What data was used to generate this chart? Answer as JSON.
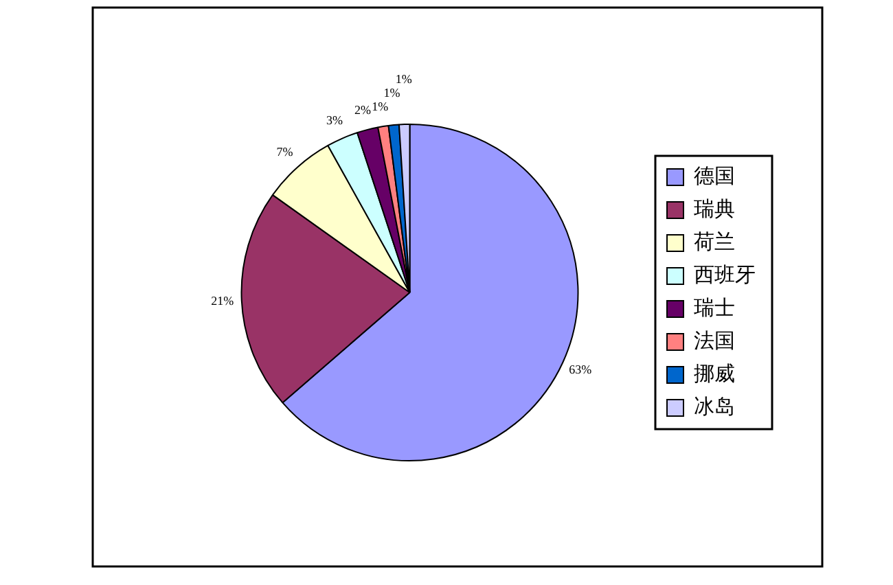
{
  "chart_data": {
    "type": "pie",
    "categories": [
      "德国",
      "瑞典",
      "荷兰",
      "西班牙",
      "瑞士",
      "法国",
      "挪威",
      "冰岛"
    ],
    "values": [
      63,
      21,
      7,
      3,
      2,
      1,
      1,
      1
    ],
    "colors": [
      "#9999ff",
      "#993366",
      "#ffffcc",
      "#ccffff",
      "#660066",
      "#ff8080",
      "#0066cc",
      "#ccccff"
    ],
    "value_labels": [
      "63%",
      "21%",
      "7%",
      "3%",
      "2%",
      "1%",
      "1%",
      "1%"
    ],
    "legend": "right"
  }
}
